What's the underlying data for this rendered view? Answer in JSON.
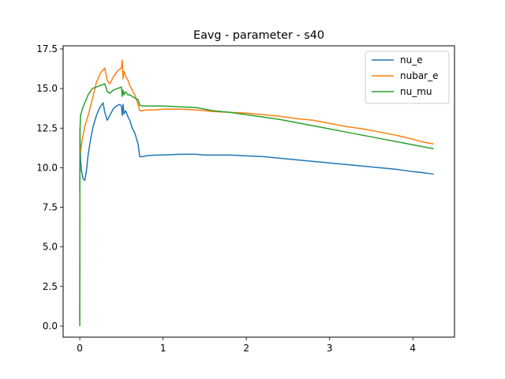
{
  "chart_data": {
    "type": "line",
    "title": "Eavg - parameter - s40",
    "xlabel": "",
    "ylabel": "",
    "xlim": [
      -0.2,
      4.5
    ],
    "ylim": [
      -0.7,
      17.7
    ],
    "xticks": [
      0,
      1,
      2,
      3,
      4
    ],
    "xtick_labels": [
      "0",
      "1",
      "2",
      "3",
      "4"
    ],
    "yticks": [
      0.0,
      2.5,
      5.0,
      7.5,
      10.0,
      12.5,
      15.0,
      17.5
    ],
    "ytick_labels": [
      "0.0",
      "2.5",
      "5.0",
      "7.5",
      "10.0",
      "12.5",
      "15.0",
      "17.5"
    ],
    "grid": false,
    "legend_position": "top-right",
    "series": [
      {
        "name": "nu_e",
        "color": "#1f77b4",
        "x": [
          0,
          0.002,
          0.005,
          0.01,
          0.02,
          0.04,
          0.06,
          0.08,
          0.1,
          0.13,
          0.16,
          0.2,
          0.24,
          0.28,
          0.3,
          0.33,
          0.36,
          0.4,
          0.44,
          0.48,
          0.5,
          0.51,
          0.52,
          0.53,
          0.55,
          0.58,
          0.6,
          0.63,
          0.66,
          0.7,
          0.72,
          0.75,
          0.8,
          0.9,
          1.0,
          1.2,
          1.4,
          1.5,
          1.6,
          1.8,
          2.0,
          2.2,
          2.4,
          2.6,
          2.8,
          3.0,
          3.2,
          3.4,
          3.6,
          3.8,
          4.0,
          4.1,
          4.25
        ],
        "y": [
          8.5,
          12.5,
          11.5,
          10.5,
          9.8,
          9.3,
          9.2,
          9.8,
          10.8,
          11.8,
          12.6,
          13.3,
          13.8,
          14.1,
          13.5,
          13.0,
          13.3,
          13.7,
          13.9,
          14.0,
          13.9,
          13.3,
          14.0,
          13.4,
          13.6,
          13.2,
          13.0,
          12.5,
          12.2,
          11.5,
          10.7,
          10.7,
          10.75,
          10.8,
          10.8,
          10.85,
          10.85,
          10.8,
          10.8,
          10.8,
          10.75,
          10.7,
          10.6,
          10.5,
          10.4,
          10.3,
          10.2,
          10.1,
          10.0,
          9.9,
          9.75,
          9.7,
          9.6
        ]
      },
      {
        "name": "nubar_e",
        "color": "#ff7f0e",
        "x": [
          0,
          0.002,
          0.005,
          0.01,
          0.03,
          0.06,
          0.1,
          0.15,
          0.2,
          0.25,
          0.3,
          0.33,
          0.36,
          0.4,
          0.45,
          0.5,
          0.51,
          0.52,
          0.53,
          0.55,
          0.58,
          0.6,
          0.63,
          0.66,
          0.7,
          0.72,
          0.75,
          0.8,
          0.9,
          1.0,
          1.2,
          1.4,
          1.5,
          1.6,
          1.8,
          2.0,
          2.2,
          2.4,
          2.6,
          2.8,
          3.0,
          3.2,
          3.4,
          3.6,
          3.8,
          4.0,
          4.1,
          4.25
        ],
        "y": [
          0.3,
          11.2,
          11.0,
          11.0,
          11.8,
          12.6,
          13.3,
          14.3,
          15.4,
          16.0,
          16.3,
          15.5,
          15.3,
          15.7,
          16.1,
          16.3,
          16.8,
          15.6,
          16.1,
          15.8,
          15.5,
          15.2,
          14.9,
          14.6,
          14.0,
          13.6,
          13.6,
          13.65,
          13.65,
          13.7,
          13.7,
          13.65,
          13.6,
          13.55,
          13.5,
          13.45,
          13.35,
          13.25,
          13.1,
          13.0,
          12.8,
          12.6,
          12.45,
          12.25,
          12.05,
          11.8,
          11.65,
          11.5
        ]
      },
      {
        "name": "nu_mu",
        "color": "#2ca02c",
        "x": [
          0,
          0.002,
          0.005,
          0.01,
          0.03,
          0.06,
          0.1,
          0.15,
          0.2,
          0.25,
          0.3,
          0.33,
          0.36,
          0.4,
          0.45,
          0.5,
          0.51,
          0.52,
          0.53,
          0.55,
          0.58,
          0.6,
          0.63,
          0.66,
          0.7,
          0.72,
          0.75,
          0.8,
          0.9,
          1.0,
          1.2,
          1.4,
          1.5,
          1.6,
          1.8,
          2.0,
          2.2,
          2.4,
          2.6,
          2.8,
          3.0,
          3.2,
          3.4,
          3.6,
          3.8,
          4.0,
          4.1,
          4.25
        ],
        "y": [
          0.0,
          12.0,
          12.8,
          13.3,
          13.7,
          14.1,
          14.6,
          15.0,
          15.1,
          15.2,
          15.3,
          14.8,
          14.7,
          14.9,
          15.0,
          15.1,
          14.5,
          14.9,
          14.6,
          14.8,
          14.6,
          14.6,
          14.5,
          14.4,
          14.3,
          13.95,
          13.9,
          13.9,
          13.9,
          13.9,
          13.85,
          13.8,
          13.7,
          13.6,
          13.5,
          13.35,
          13.2,
          13.05,
          12.85,
          12.65,
          12.45,
          12.25,
          12.05,
          11.85,
          11.65,
          11.45,
          11.35,
          11.2
        ]
      }
    ]
  }
}
